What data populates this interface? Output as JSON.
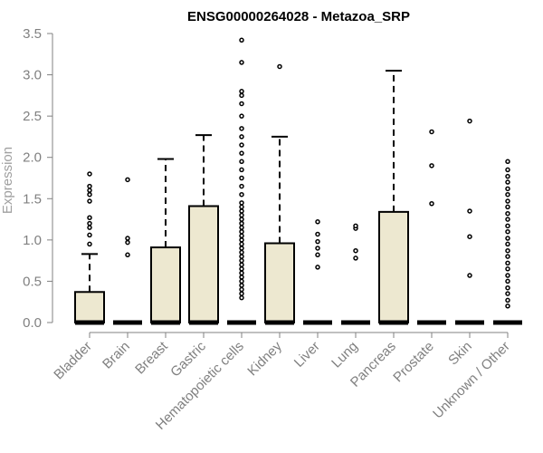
{
  "chart_data": {
    "type": "boxplot",
    "title": "ENSG00000264028 - Metazoa_SRP",
    "xlabel": "",
    "ylabel": "Expression",
    "ylim": [
      0,
      3.5
    ],
    "yticks": [
      "0.0",
      "0.5",
      "1.0",
      "1.5",
      "2.0",
      "2.5",
      "3.0",
      "3.5"
    ],
    "grid": false,
    "legend": "none",
    "colors": {
      "box_fill": "#ede8d0",
      "box_stroke": "#000000",
      "axis": "#808080"
    },
    "categories": [
      "Bladder",
      "Brain",
      "Breast",
      "Gastric",
      "Hematopoietic cells",
      "Kidney",
      "Liver",
      "Lung",
      "Pancreas",
      "Prostate",
      "Skin",
      "Unknown / Other"
    ],
    "boxes": [
      {
        "category": "Bladder",
        "min": 0,
        "q1": 0,
        "median": 0,
        "q3": 0.37,
        "max": 0.83,
        "outliers": [
          0.95,
          1.06,
          1.15,
          1.2,
          1.27,
          1.47,
          1.55,
          1.6,
          1.65,
          1.8
        ]
      },
      {
        "category": "Brain",
        "min": 0,
        "q1": 0,
        "median": 0,
        "q3": 0,
        "max": 0,
        "outliers": [
          0.82,
          0.97,
          1.02,
          1.73
        ]
      },
      {
        "category": "Breast",
        "min": 0,
        "q1": 0,
        "median": 0,
        "q3": 0.91,
        "max": 1.98,
        "outliers": []
      },
      {
        "category": "Gastric",
        "min": 0,
        "q1": 0,
        "median": 0,
        "q3": 1.41,
        "max": 2.27,
        "outliers": []
      },
      {
        "category": "Hematopoietic cells",
        "min": 0,
        "q1": 0,
        "median": 0,
        "q3": 0,
        "max": 0,
        "outliers": [
          0.3,
          0.35,
          0.4,
          0.45,
          0.5,
          0.55,
          0.6,
          0.65,
          0.7,
          0.75,
          0.8,
          0.85,
          0.9,
          0.95,
          1.0,
          1.05,
          1.1,
          1.15,
          1.2,
          1.25,
          1.3,
          1.35,
          1.4,
          1.45,
          1.55,
          1.65,
          1.75,
          1.85,
          1.95,
          2.05,
          2.15,
          2.25,
          2.35,
          2.5,
          2.65,
          2.75,
          2.8,
          3.15,
          3.42
        ]
      },
      {
        "category": "Kidney",
        "min": 0,
        "q1": 0,
        "median": 0,
        "q3": 0.96,
        "max": 2.25,
        "outliers": [
          3.1
        ]
      },
      {
        "category": "Liver",
        "min": 0,
        "q1": 0,
        "median": 0,
        "q3": 0,
        "max": 0,
        "outliers": [
          0.67,
          0.82,
          0.9,
          0.98,
          1.07,
          1.22
        ]
      },
      {
        "category": "Lung",
        "min": 0,
        "q1": 0,
        "median": 0,
        "q3": 0,
        "max": 0,
        "outliers": [
          0.78,
          0.87,
          1.14,
          1.17
        ]
      },
      {
        "category": "Pancreas",
        "min": 0,
        "q1": 0,
        "median": 0,
        "q3": 1.34,
        "max": 3.05,
        "outliers": []
      },
      {
        "category": "Prostate",
        "min": 0,
        "q1": 0,
        "median": 0,
        "q3": 0,
        "max": 0,
        "outliers": [
          1.44,
          1.9,
          2.31
        ]
      },
      {
        "category": "Skin",
        "min": 0,
        "q1": 0,
        "median": 0,
        "q3": 0,
        "max": 0,
        "outliers": [
          0.57,
          1.04,
          1.35,
          2.44
        ]
      },
      {
        "category": "Unknown / Other",
        "min": 0,
        "q1": 0,
        "median": 0,
        "q3": 0,
        "max": 0,
        "outliers": [
          0.2,
          0.27,
          0.35,
          0.42,
          0.5,
          0.57,
          0.65,
          0.72,
          0.8,
          0.87,
          0.95,
          1.02,
          1.1,
          1.17,
          1.25,
          1.32,
          1.4,
          1.47,
          1.55,
          1.62,
          1.7,
          1.77,
          1.85,
          1.95
        ]
      }
    ]
  }
}
